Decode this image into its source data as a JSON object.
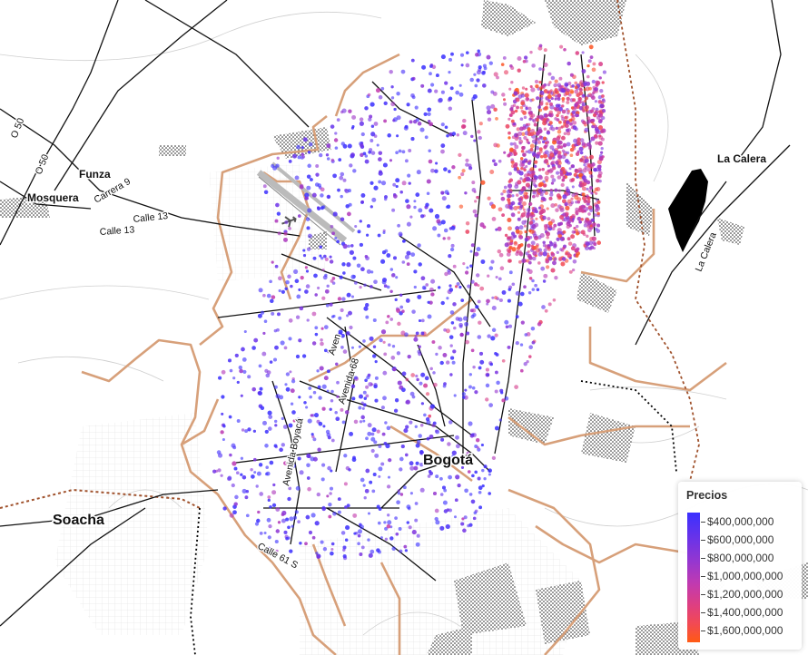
{
  "map": {
    "places": {
      "la_calera": "La Calera",
      "funza": "Funza",
      "mosquera": "Mosquera",
      "soacha": "Soacha",
      "bogota": "Bogotá"
    },
    "roads": {
      "o50_a": "O 50",
      "o50_b": "O 50",
      "carrera9": "Carrera 9",
      "calle13_a": "Calle 13",
      "calle13_b": "Calle 13",
      "la_calera_road": "La Calera",
      "avenida_68": "Avenida 68",
      "avenida_boyaca": "Avenida Boyacá",
      "avenida_short": "Aven",
      "calle_61": "Calle 61 S"
    }
  },
  "legend": {
    "title": "Precios",
    "labels": [
      "$400,000,000",
      "$600,000,000",
      "$800,000,000",
      "$1,000,000,000",
      "$1,200,000,000",
      "$1,400,000,000",
      "$1,600,000,000"
    ]
  }
}
